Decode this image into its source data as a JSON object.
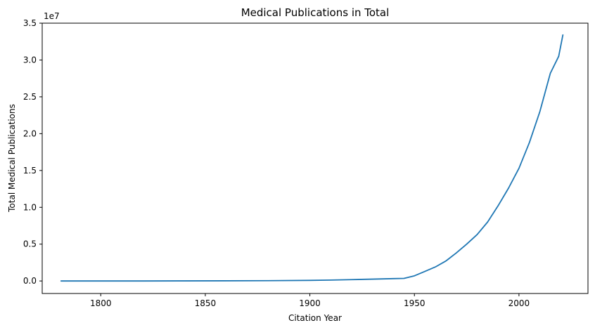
{
  "chart_data": {
    "type": "line",
    "title": "Medical Publications in Total",
    "xlabel": "Citation Year",
    "ylabel": "Total Medical Publications",
    "offset_label": "1e7",
    "xlim": [
      1772,
      2033
    ],
    "ylim": [
      -0.17,
      3.5
    ],
    "y_scale_factor": 10000000,
    "xticks": [
      1800,
      1850,
      1900,
      1950,
      2000
    ],
    "xtick_labels": [
      "1800",
      "1850",
      "1900",
      "1950",
      "2000"
    ],
    "yticks": [
      0.0,
      0.5,
      1.0,
      1.5,
      2.0,
      2.5,
      3.0,
      3.5
    ],
    "ytick_labels": [
      "0.0",
      "0.5",
      "1.0",
      "1.5",
      "2.0",
      "2.5",
      "3.0",
      "3.5"
    ],
    "grid": false,
    "legend": "none",
    "series": [
      {
        "color": "#1f77b4",
        "x": [
          1781,
          1800,
          1820,
          1840,
          1860,
          1880,
          1900,
          1910,
          1920,
          1930,
          1940,
          1945,
          1950,
          1955,
          1960,
          1965,
          1970,
          1975,
          1980,
          1985,
          1990,
          1995,
          2000,
          2005,
          2010,
          2015,
          2019,
          2021
        ],
        "y": [
          0.0,
          0.0,
          0.0,
          0.001,
          0.002,
          0.004,
          0.008,
          0.012,
          0.018,
          0.025,
          0.032,
          0.035,
          0.07,
          0.13,
          0.19,
          0.27,
          0.38,
          0.5,
          0.63,
          0.8,
          1.02,
          1.26,
          1.53,
          1.88,
          2.3,
          2.82,
          3.05,
          3.34
        ]
      }
    ]
  }
}
